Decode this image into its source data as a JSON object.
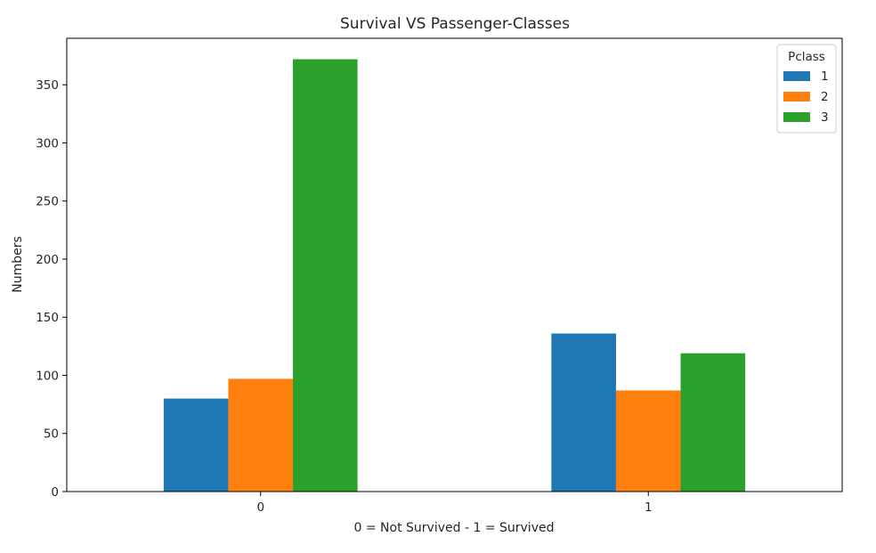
{
  "chart_data": {
    "type": "bar",
    "title": "Survival VS Passenger-Classes",
    "xlabel": "0 = Not Survived - 1 = Survived",
    "ylabel": "Numbers",
    "categories": [
      "0",
      "1"
    ],
    "ylim": [
      0,
      390
    ],
    "yticks": [
      "0",
      "50",
      "100",
      "150",
      "200",
      "250",
      "300",
      "350"
    ],
    "grid": false,
    "legend": {
      "title": "Pclass",
      "placement": "top-right"
    },
    "series": [
      {
        "name": "1",
        "color": "#1f77b4",
        "values": [
          80,
          136
        ]
      },
      {
        "name": "2",
        "color": "#ff7f0e",
        "values": [
          97,
          87
        ]
      },
      {
        "name": "3",
        "color": "#2ca02c",
        "values": [
          372,
          119
        ]
      }
    ]
  }
}
